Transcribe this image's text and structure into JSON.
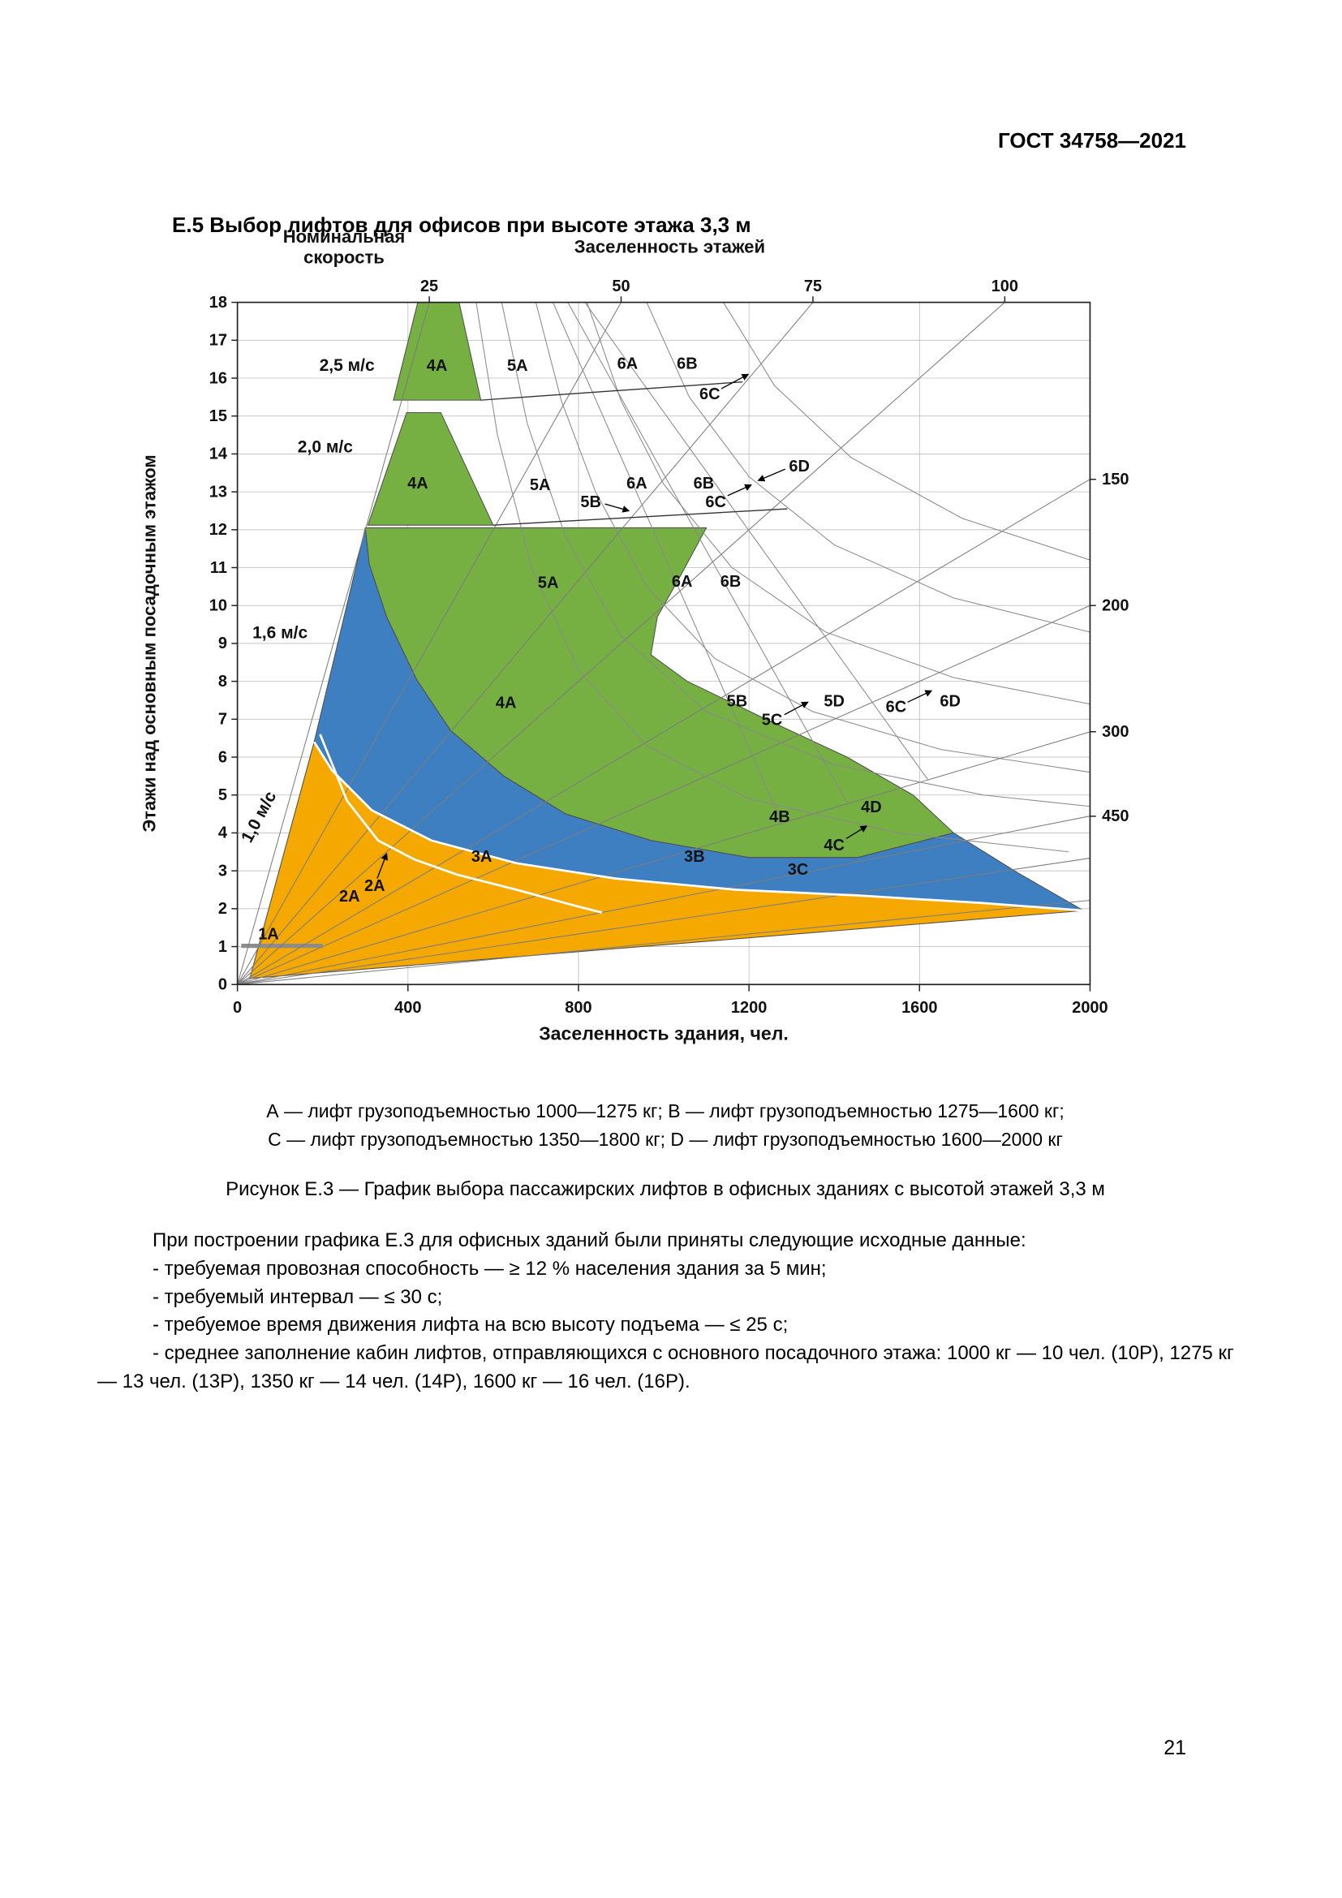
{
  "page": {
    "doc_header": "ГОСТ 34758—2021",
    "section_heading": "Е.5  Выбор лифтов для офисов при высоте этажа 3,3 м",
    "page_number": "21"
  },
  "figure": {
    "legend_line1": "А — лифт грузоподъемностью 1000—1275 кг; В — лифт грузоподъемностью 1275—1600 кг;",
    "legend_line2": "С — лифт грузоподъемностью 1350—1800 кг; D — лифт грузоподъемностью 1600—2000 кг",
    "caption": "Рисунок Е.3 — График выбора пассажирских лифтов в офисных зданиях с высотой этажей 3,3 м"
  },
  "body": {
    "intro": "При построении графика Е.3 для офисных зданий были приняты следующие исходные данные:",
    "bullets": [
      "-  требуемая провозная способность — ≥ 12 % населения здания за 5 мин;",
      "-  требуемый интервал — ≤ 30 с;",
      "-  требуемое время движения лифта на всю высоту подъема — ≤ 25 с;",
      "-  среднее заполнение кабин лифтов, отправляющихся с основного посадочного этажа: 1000 кг — 10 чел. (10Р), 1275 кг — 13 чел. (13Р), 1350 кг — 14 чел. (14Р), 1600 кг — 16 чел. (16Р)."
    ]
  },
  "chart_data": {
    "type": "area",
    "title": "График выбора пассажирских лифтов в офисных зданиях с высотой этажей 3,3 м",
    "xlabel": "Заселенность здания, чел.",
    "ylabel": "Этажи над основным посадочным этажом",
    "header_speed": [
      "Номинальная",
      "скорость"
    ],
    "header_occupancy": "Заселенность этажей",
    "xlim": [
      0,
      2000
    ],
    "ylim": [
      0,
      18
    ],
    "x_ticks": [
      0,
      400,
      800,
      1200,
      1600,
      2000
    ],
    "grid": true,
    "colors": {
      "green": "#76b043",
      "blue": "#3e7fc1",
      "orange": "#f5a800",
      "grid": "#bdbdbd",
      "fan": "#7d7d7d",
      "curve": "#8a8a8a",
      "region_stroke": "#4f4f4f"
    },
    "fan_lines_people_per_floor": [
      25,
      50,
      75,
      100,
      150,
      200,
      300,
      450,
      600,
      900
    ],
    "fan_top_labels": [
      {
        "value": "25",
        "x": 450
      },
      {
        "value": "50",
        "x": 900
      },
      {
        "value": "75",
        "x": 1350
      },
      {
        "value": "100",
        "x": 1800
      }
    ],
    "fan_right_labels": [
      {
        "value": "150",
        "y": 13.33
      },
      {
        "value": "200",
        "y": 10
      },
      {
        "value": "300",
        "y": 6.67
      },
      {
        "value": "450",
        "y": 4.44
      }
    ],
    "speed_labels": [
      {
        "text": "2,5 м/с",
        "x": 257,
        "y": 16.35,
        "rotate": 0
      },
      {
        "text": "2,0 м/с",
        "x": 206,
        "y": 14.2,
        "rotate": 0
      },
      {
        "text": "1,6 м/с",
        "x": 100,
        "y": 9.3,
        "rotate": 0
      },
      {
        "text": "1,0 м/с",
        "x": 49,
        "y": 4.43,
        "rotate": -62
      }
    ],
    "regions": [
      {
        "name": "zone-4A-speed-2.5",
        "fill": "green",
        "points": [
          [
            423,
            18
          ],
          [
            520,
            18
          ],
          [
            571,
            15.42
          ],
          [
            366,
            15.42
          ]
        ]
      },
      {
        "name": "zone-4A-speed-2.0",
        "fill": "green",
        "points": [
          [
            397,
            15.09
          ],
          [
            477,
            15.09
          ],
          [
            600,
            12.12
          ],
          [
            306,
            12.12
          ]
        ]
      },
      {
        "name": "zones-green-main",
        "fill": "green",
        "points": [
          [
            300,
            12.05
          ],
          [
            1100,
            12.05
          ],
          [
            1040,
            10.8
          ],
          [
            985,
            9.7
          ],
          [
            970,
            8.7
          ],
          [
            1055,
            8.0
          ],
          [
            1240,
            7.0
          ],
          [
            1430,
            6.0
          ],
          [
            1585,
            5.0
          ],
          [
            1680,
            4.0
          ],
          [
            1455,
            3.35
          ],
          [
            1200,
            3.35
          ],
          [
            970,
            3.8
          ],
          [
            770,
            4.5
          ],
          [
            625,
            5.5
          ],
          [
            500,
            6.7
          ],
          [
            420,
            8.05
          ],
          [
            350,
            9.7
          ],
          [
            309,
            11.1
          ]
        ]
      },
      {
        "name": "zones-blue-main",
        "fill": "blue",
        "points": [
          [
            300,
            12.05
          ],
          [
            309,
            11.1
          ],
          [
            350,
            9.7
          ],
          [
            420,
            8.05
          ],
          [
            500,
            6.7
          ],
          [
            625,
            5.5
          ],
          [
            770,
            4.5
          ],
          [
            970,
            3.8
          ],
          [
            1200,
            3.35
          ],
          [
            1455,
            3.35
          ],
          [
            1680,
            4.0
          ],
          [
            1830,
            2.95
          ],
          [
            1985,
            1.95
          ],
          [
            1745,
            2.15
          ],
          [
            1455,
            2.35
          ],
          [
            1170,
            2.5
          ],
          [
            885,
            2.8
          ],
          [
            655,
            3.2
          ],
          [
            455,
            3.8
          ],
          [
            315,
            4.6
          ],
          [
            222,
            5.65
          ],
          [
            180,
            6.4
          ]
        ]
      },
      {
        "name": "zones-orange-main",
        "fill": "orange",
        "points": [
          [
            180,
            6.4
          ],
          [
            222,
            5.65
          ],
          [
            315,
            4.6
          ],
          [
            455,
            3.8
          ],
          [
            655,
            3.2
          ],
          [
            885,
            2.8
          ],
          [
            1170,
            2.5
          ],
          [
            1455,
            2.35
          ],
          [
            1745,
            2.15
          ],
          [
            1985,
            1.95
          ],
          [
            29,
            0.16
          ]
        ]
      }
    ],
    "zone_labels": [
      {
        "text": "4А",
        "x": 468,
        "y": 16.35
      },
      {
        "text": "5А",
        "x": 657,
        "y": 16.35
      },
      {
        "text": "6А",
        "x": 915,
        "y": 16.4
      },
      {
        "text": "6В",
        "x": 1055,
        "y": 16.4
      },
      {
        "text": "6С",
        "x": 1108,
        "y": 15.6
      },
      {
        "text": "4А",
        "x": 423,
        "y": 13.25
      },
      {
        "text": "5А",
        "x": 710,
        "y": 13.2
      },
      {
        "text": "5В",
        "x": 829,
        "y": 12.75
      },
      {
        "text": "6А",
        "x": 937,
        "y": 13.25
      },
      {
        "text": "6В",
        "x": 1094,
        "y": 13.25
      },
      {
        "text": "6С",
        "x": 1122,
        "y": 12.75
      },
      {
        "text": "6D",
        "x": 1318,
        "y": 13.7
      },
      {
        "text": "5А",
        "x": 729,
        "y": 10.62
      },
      {
        "text": "6А",
        "x": 1043,
        "y": 10.65
      },
      {
        "text": "6В",
        "x": 1157,
        "y": 10.65
      },
      {
        "text": "4А",
        "x": 630,
        "y": 7.45
      },
      {
        "text": "5В",
        "x": 1172,
        "y": 7.5
      },
      {
        "text": "5С",
        "x": 1254,
        "y": 7.0
      },
      {
        "text": "5D",
        "x": 1400,
        "y": 7.5
      },
      {
        "text": "6С",
        "x": 1545,
        "y": 7.35
      },
      {
        "text": "6D",
        "x": 1672,
        "y": 7.5
      },
      {
        "text": "4В",
        "x": 1272,
        "y": 4.45
      },
      {
        "text": "4С",
        "x": 1400,
        "y": 3.7
      },
      {
        "text": "4D",
        "x": 1487,
        "y": 4.7
      },
      {
        "text": "3А",
        "x": 573,
        "y": 3.4
      },
      {
        "text": "3В",
        "x": 1072,
        "y": 3.4
      },
      {
        "text": "3С",
        "x": 1315,
        "y": 3.05
      },
      {
        "text": "2А",
        "x": 263,
        "y": 2.35
      },
      {
        "text": "2А",
        "x": 322,
        "y": 2.62
      },
      {
        "text": "1А",
        "x": 73,
        "y": 1.35
      }
    ],
    "gray_curves": [
      [
        [
          700,
          18
        ],
        [
          760,
          15.4
        ],
        [
          840,
          13
        ],
        [
          960,
          10.5
        ],
        [
          1120,
          8.6
        ],
        [
          1350,
          7.2
        ],
        [
          1650,
          6.2
        ],
        [
          2000,
          5.6
        ]
      ],
      [
        [
          820,
          18
        ],
        [
          900,
          15.4
        ],
        [
          1000,
          13.2
        ],
        [
          1160,
          11
        ],
        [
          1380,
          9.3
        ],
        [
          1680,
          8.1
        ],
        [
          2000,
          7.4
        ]
      ],
      [
        [
          960,
          18
        ],
        [
          1060,
          15.5
        ],
        [
          1200,
          13.4
        ],
        [
          1400,
          11.6
        ],
        [
          1680,
          10.2
        ],
        [
          2000,
          9.3
        ]
      ],
      [
        [
          1140,
          18
        ],
        [
          1260,
          15.8
        ],
        [
          1440,
          13.9
        ],
        [
          1700,
          12.3
        ],
        [
          2000,
          11.2
        ]
      ],
      [
        [
          620,
          18
        ],
        [
          680,
          14.8
        ],
        [
          770,
          11.8
        ],
        [
          900,
          9.2
        ],
        [
          1100,
          7.2
        ],
        [
          1400,
          5.8
        ],
        [
          1750,
          5.0
        ],
        [
          2000,
          4.7
        ]
      ],
      [
        [
          560,
          18
        ],
        [
          610,
          14.5
        ],
        [
          690,
          11
        ],
        [
          800,
          8.3
        ],
        [
          960,
          6.3
        ],
        [
          1200,
          4.9
        ],
        [
          1550,
          4.0
        ],
        [
          1950,
          3.5
        ]
      ]
    ],
    "steep_lines": [
      [
        [
          740,
          18
        ],
        [
          1280,
          4.2
        ]
      ],
      [
        [
          775,
          18
        ],
        [
          1430,
          4.8
        ]
      ],
      [
        [
          815,
          18
        ],
        [
          1620,
          5.4
        ]
      ]
    ],
    "boundary_extension_lines": [
      [
        [
          571,
          15.42
        ],
        [
          1185,
          15.9
        ]
      ],
      [
        [
          600,
          12.12
        ],
        [
          1290,
          12.55
        ]
      ]
    ],
    "white_curves": [
      [
        [
          180,
          6.4
        ],
        [
          222,
          5.65
        ],
        [
          315,
          4.6
        ],
        [
          455,
          3.8
        ],
        [
          655,
          3.2
        ],
        [
          885,
          2.8
        ],
        [
          1170,
          2.5
        ],
        [
          1455,
          2.35
        ],
        [
          1745,
          2.15
        ],
        [
          1985,
          1.95
        ]
      ],
      [
        [
          194,
          6.6
        ],
        [
          257,
          4.85
        ],
        [
          330,
          3.8
        ],
        [
          415,
          3.3
        ],
        [
          515,
          2.9
        ],
        [
          655,
          2.5
        ],
        [
          785,
          2.1
        ],
        [
          855,
          1.9
        ]
      ]
    ],
    "gray_strip": {
      "from": [
        9,
        1.02
      ],
      "to": [
        200,
        1.02
      ]
    },
    "leaders": [
      {
        "from": [
          1135,
          15.72
        ],
        "to": [
          1198,
          16.1
        ]
      },
      {
        "from": [
          862,
          12.68
        ],
        "to": [
          918,
          12.5
        ]
      },
      {
        "from": [
          1150,
          12.9
        ],
        "to": [
          1205,
          13.18
        ]
      },
      {
        "from": [
          1285,
          13.6
        ],
        "to": [
          1222,
          13.3
        ]
      },
      {
        "from": [
          1283,
          7.12
        ],
        "to": [
          1338,
          7.45
        ]
      },
      {
        "from": [
          1572,
          7.45
        ],
        "to": [
          1628,
          7.75
        ]
      },
      {
        "from": [
          1428,
          3.85
        ],
        "to": [
          1476,
          4.18
        ]
      },
      {
        "from": [
          328,
          2.8
        ],
        "to": [
          350,
          3.45
        ]
      }
    ]
  }
}
